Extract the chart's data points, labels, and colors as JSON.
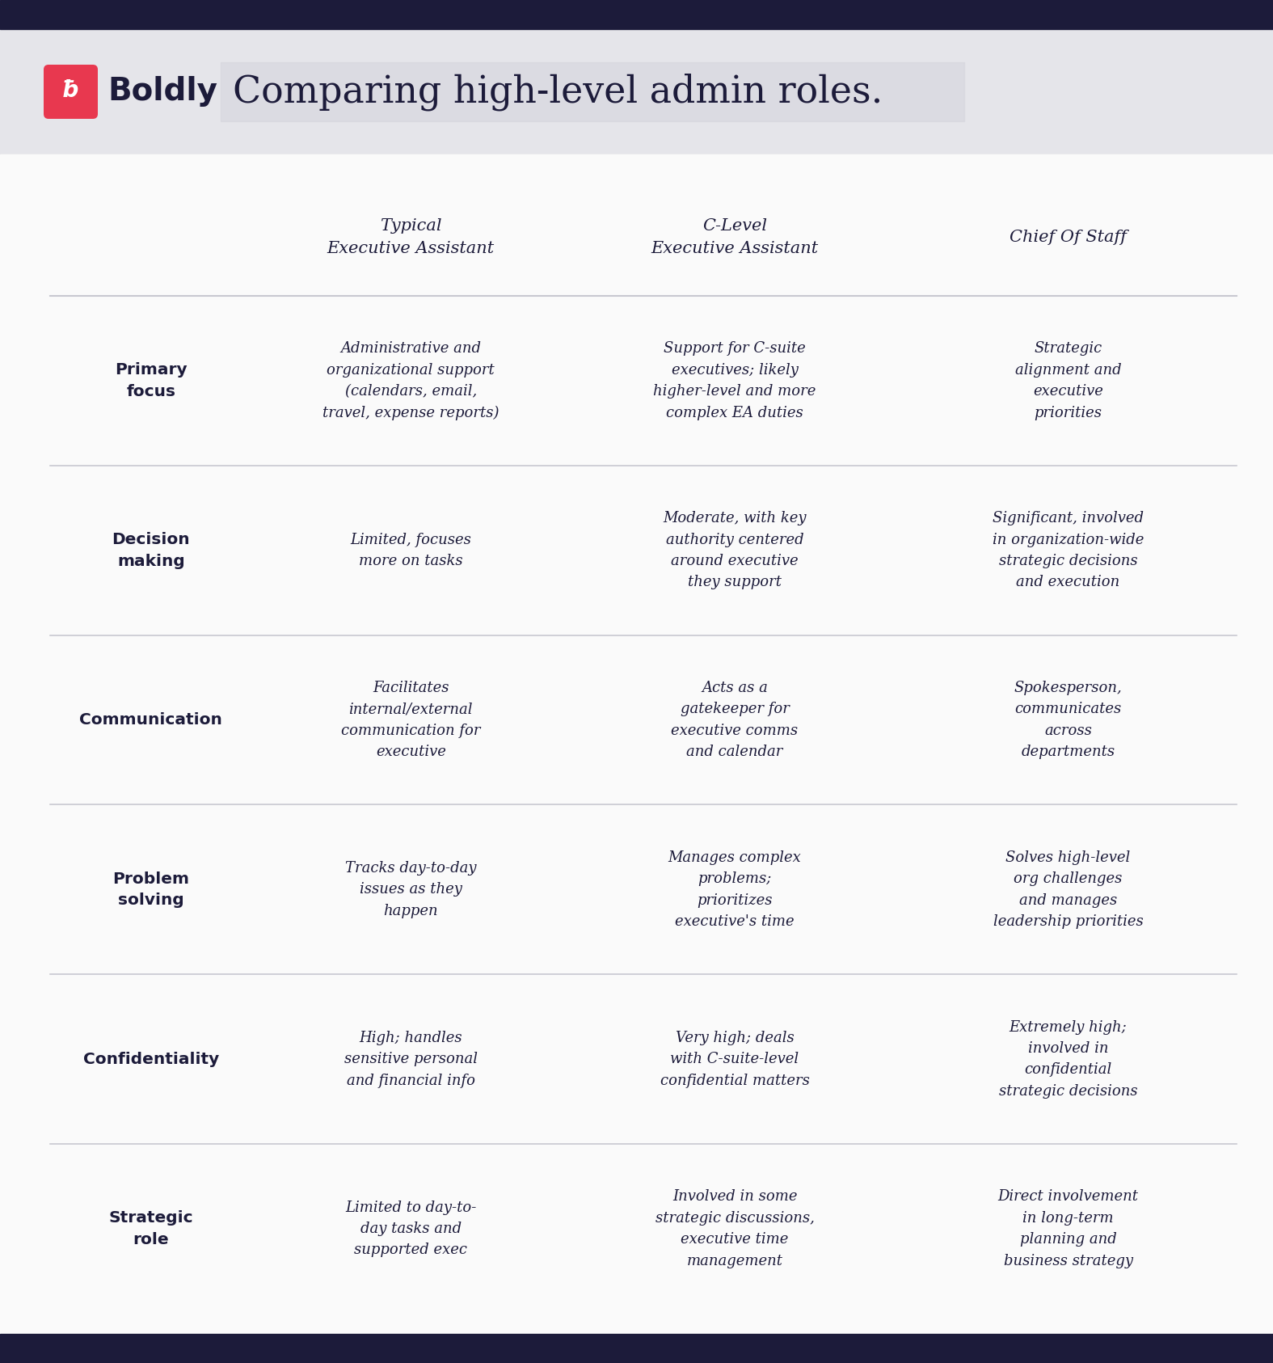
{
  "title": "Comparing high-level admin roles.",
  "brand_name": "Boldly",
  "bg_color_header": "#e5e5ea",
  "bg_color_table": "#f7f7f9",
  "border_color": "#1c1b3a",
  "text_color_dark": "#1c1b3a",
  "line_color": "#c8c8d0",
  "brand_red": "#e8384f",
  "col_headers": [
    "Typical\nExecutive Assistant",
    "C-Level\nExecutive Assistant",
    "Chief Of Staff"
  ],
  "row_labels": [
    "Primary\nfocus",
    "Decision\nmaking",
    "Communication",
    "Problem\nsolving",
    "Confidentiality",
    "Strategic\nrole"
  ],
  "cells": [
    [
      "Administrative and\norganizational support\n(calendars, email,\ntravel, expense reports)",
      "Support for C-suite\nexecutives; likely\nhigher-level and more\ncomplex EA duties",
      "Strategic\nalignment and\nexecutive\npriorities"
    ],
    [
      "Limited, focuses\nmore on tasks",
      "Moderate, with key\nauthority centered\naround executive\nthey support",
      "Significant, involved\nin organization-wide\nstrategic decisions\nand execution"
    ],
    [
      "Facilitates\ninternal/external\ncommunication for\nexecutive",
      "Acts as a\ngatekeeper for\nexecutive comms\nand calendar",
      "Spokesperson,\ncommunicates\nacross\ndepartments"
    ],
    [
      "Tracks day-to-day\nissues as they\nhappen",
      "Manages complex\nproblems;\nprioritizes\nexecutive's time",
      "Solves high-level\norg challenges\nand manages\nleadership priorities"
    ],
    [
      "High; handles\nsensitive personal\nand financial info",
      "Very high; deals\nwith C-suite-level\nconfidential matters",
      "Extremely high;\ninvolved in\nconfidential\nstrategic decisions"
    ],
    [
      "Limited to day-to-\nday tasks and\nsupported exec",
      "Involved in some\nstrategic discussions,\nexecutive time\nmanagement",
      "Direct involvement\nin long-term\nplanning and\nbusiness strategy"
    ]
  ],
  "fig_width": 15.75,
  "fig_height": 16.86,
  "dpi": 100
}
